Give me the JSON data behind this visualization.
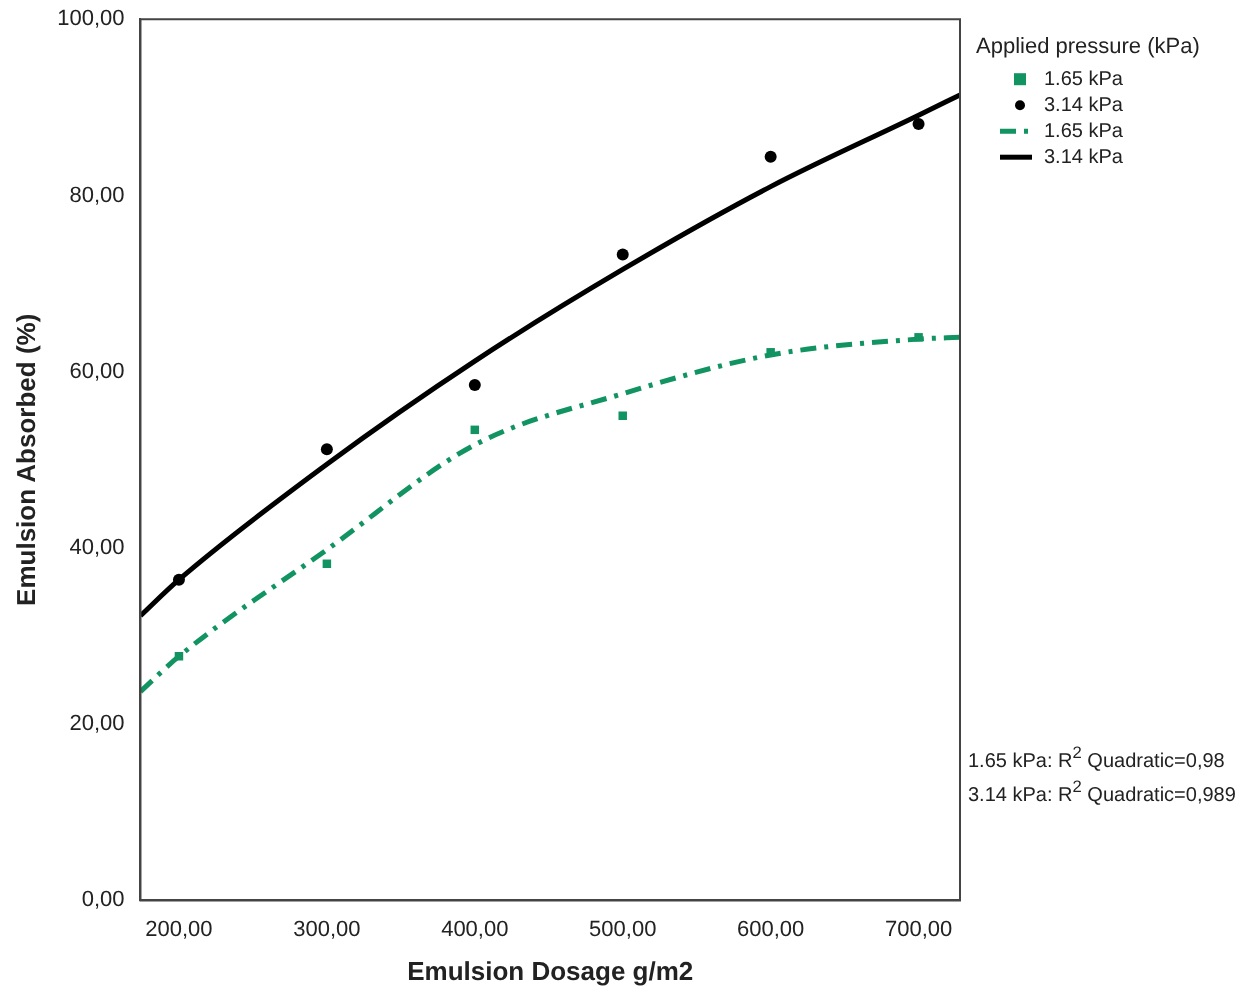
{
  "chart_data": {
    "type": "scatter",
    "xlabel": "Emulsion Dosage g/m2",
    "ylabel": "Emulsion Absorbed (%)",
    "legend_title": "Applied pressure (kPa)",
    "x": [
      200,
      300,
      400,
      500,
      600,
      700
    ],
    "series": [
      {
        "name": "1.65 kPa",
        "marker": "square",
        "color": "#119462",
        "values": [
          27.7,
          38.2,
          53.4,
          55.0,
          62.2,
          63.9
        ]
      },
      {
        "name": "3.14 kPa",
        "marker": "circle",
        "color": "#000000",
        "values": [
          36.4,
          51.2,
          58.5,
          73.3,
          84.4,
          88.1
        ]
      },
      {
        "name": "1.65 kPa",
        "type": "line",
        "marker": "none",
        "line_style": "dashed",
        "color": "#119462",
        "x": [
          174,
          200,
          300,
          400,
          500,
          600,
          700,
          728
        ],
        "values": [
          23.7,
          27.7,
          39.8,
          51.7,
          57.5,
          61.9,
          63.7,
          63.9
        ]
      },
      {
        "name": "3.14 kPa",
        "type": "line",
        "marker": "none",
        "line_style": "solid",
        "color": "#000000",
        "x": [
          174,
          200,
          300,
          400,
          500,
          600,
          700,
          728
        ],
        "values": [
          32.3,
          36.4,
          49.5,
          61.2,
          71.6,
          81.0,
          89.1,
          91.4
        ]
      }
    ],
    "xlim": [
      174,
      728
    ],
    "xticks": [
      {
        "value": 200,
        "label": "200,00"
      },
      {
        "value": 300,
        "label": "300,00"
      },
      {
        "value": 400,
        "label": "400,00"
      },
      {
        "value": 500,
        "label": "500,00"
      },
      {
        "value": 600,
        "label": "600,00"
      },
      {
        "value": 700,
        "label": "700,00"
      }
    ],
    "ylim": [
      0,
      100
    ],
    "yticks": [
      {
        "value": 0,
        "label": "0,00"
      },
      {
        "value": 20,
        "label": "20,00"
      },
      {
        "value": 40,
        "label": "40,00"
      },
      {
        "value": 60,
        "label": "60,00"
      },
      {
        "value": 80,
        "label": "80,00"
      },
      {
        "value": 100,
        "label": "100,00"
      }
    ],
    "grid": false,
    "legend": "top right",
    "annotations": [
      "1.65 kPa: R$^{2}$ Quadratic=0,98",
      "3.14 kPa: R$^{2}$ Quadratic=0,989"
    ]
  }
}
